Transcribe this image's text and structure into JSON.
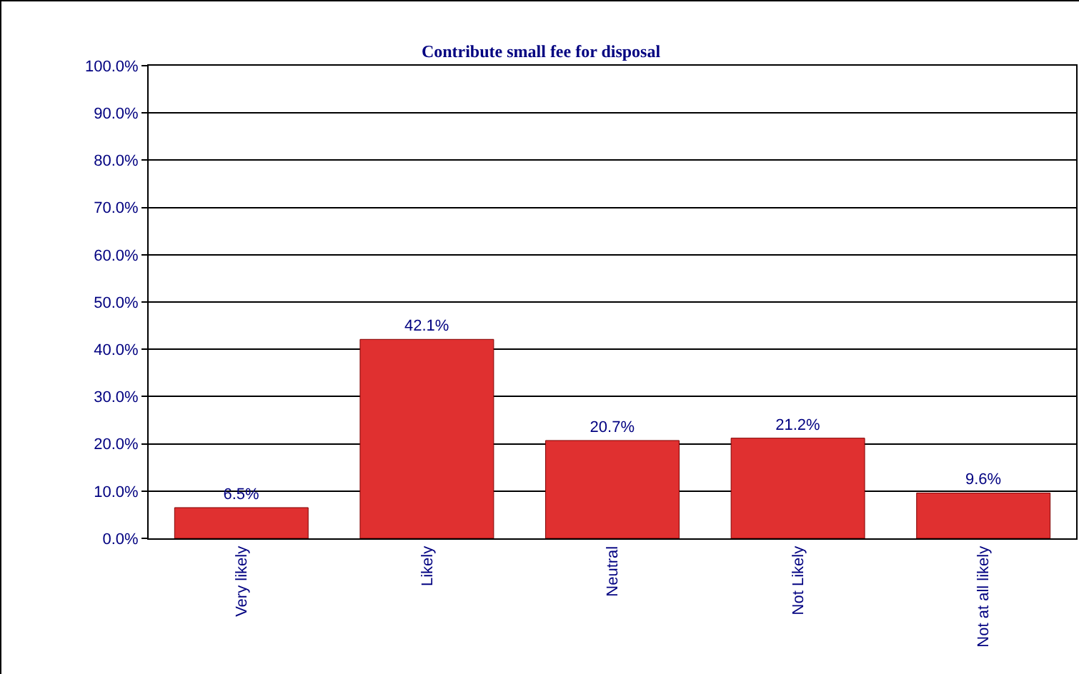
{
  "chart_data": {
    "type": "bar",
    "title": "Contribute small fee for disposal",
    "categories": [
      "Very likely",
      "Likely",
      "Neutral",
      "Not Likely",
      "Not at all likely"
    ],
    "values": [
      6.5,
      42.1,
      20.7,
      21.2,
      9.6
    ],
    "value_labels": [
      "6.5%",
      "42.1%",
      "20.7%",
      "21.2%",
      "9.6%"
    ],
    "color": "#e03030",
    "ylim": [
      0,
      100
    ],
    "yticks": [
      {
        "value": 0,
        "label": "0.0%"
      },
      {
        "value": 10,
        "label": "10.0%"
      },
      {
        "value": 20,
        "label": "20.0%"
      },
      {
        "value": 30,
        "label": "30.0%"
      },
      {
        "value": 40,
        "label": "40.0%"
      },
      {
        "value": 50,
        "label": "50.0%"
      },
      {
        "value": 60,
        "label": "60.0%"
      },
      {
        "value": 70,
        "label": "70.0%"
      },
      {
        "value": 80,
        "label": "80.0%"
      },
      {
        "value": 90,
        "label": "90.0%"
      },
      {
        "value": 100,
        "label": "100.0%"
      }
    ],
    "grid": "y"
  }
}
